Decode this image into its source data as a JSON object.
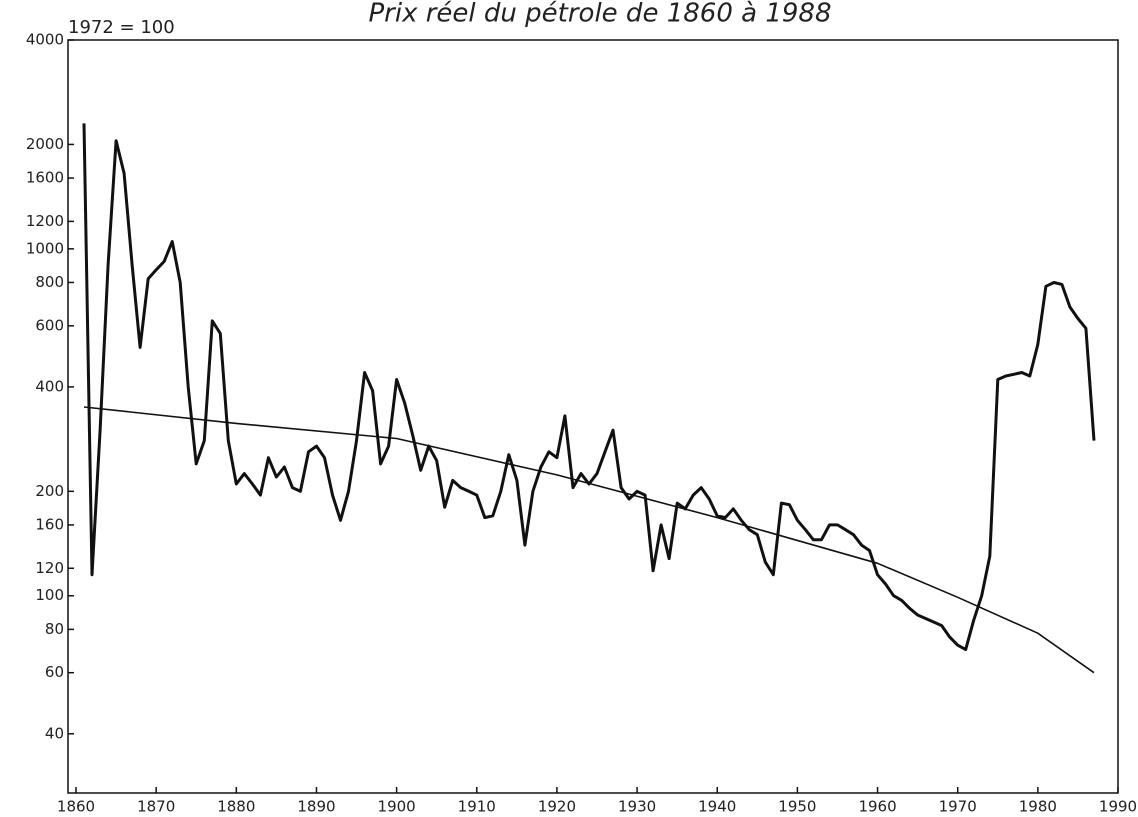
{
  "chart_data": {
    "type": "line",
    "title": "Prix réel du pétrole de 1860 à 1988",
    "y_label": "1972 = 100",
    "log_y": true,
    "xlim": [
      1859,
      1990
    ],
    "ylim": [
      27,
      4000
    ],
    "xticks": [
      1860,
      1870,
      1880,
      1890,
      1900,
      1910,
      1920,
      1930,
      1940,
      1950,
      1960,
      1970,
      1980,
      1990
    ],
    "yticks": [
      40,
      60,
      80,
      100,
      120,
      160,
      200,
      400,
      600,
      800,
      1000,
      1200,
      1600,
      2000,
      4000
    ],
    "series": [
      {
        "color": "#111111",
        "x": [
          1861,
          1862,
          1863,
          1864,
          1865,
          1866,
          1867,
          1868,
          1869,
          1870,
          1871,
          1872,
          1873,
          1874,
          1875,
          1876,
          1877,
          1878,
          1879,
          1880,
          1881,
          1882,
          1883,
          1884,
          1885,
          1886,
          1887,
          1888,
          1889,
          1890,
          1891,
          1892,
          1893,
          1894,
          1895,
          1896,
          1897,
          1898,
          1899,
          1900,
          1901,
          1902,
          1903,
          1904,
          1905,
          1906,
          1907,
          1908,
          1909,
          1910,
          1911,
          1912,
          1913,
          1914,
          1915,
          1916,
          1917,
          1918,
          1919,
          1920,
          1921,
          1922,
          1923,
          1924,
          1925,
          1926,
          1927,
          1928,
          1929,
          1930,
          1931,
          1932,
          1933,
          1934,
          1935,
          1936,
          1937,
          1938,
          1939,
          1940,
          1941,
          1942,
          1943,
          1944,
          1945,
          1946,
          1947,
          1948,
          1949,
          1950,
          1951,
          1952,
          1953,
          1954,
          1955,
          1956,
          1957,
          1958,
          1959,
          1960,
          1961,
          1962,
          1963,
          1964,
          1965,
          1966,
          1967,
          1968,
          1969,
          1970,
          1971,
          1972,
          1973,
          1974,
          1975,
          1976,
          1977,
          1978,
          1979,
          1980,
          1981,
          1982,
          1983,
          1984,
          1985,
          1986,
          1987
        ],
        "values": [
          2300,
          115,
          300,
          900,
          2050,
          1650,
          900,
          520,
          820,
          870,
          920,
          1050,
          800,
          400,
          240,
          280,
          620,
          570,
          280,
          210,
          225,
          210,
          195,
          250,
          220,
          235,
          205,
          200,
          260,
          270,
          250,
          195,
          165,
          200,
          280,
          440,
          390,
          240,
          270,
          420,
          360,
          290,
          230,
          270,
          245,
          180,
          215,
          205,
          200,
          195,
          168,
          170,
          200,
          255,
          215,
          140,
          200,
          235,
          260,
          250,
          330,
          205,
          225,
          210,
          225,
          260,
          300,
          205,
          190,
          200,
          195,
          118,
          160,
          128,
          185,
          178,
          195,
          205,
          190,
          170,
          168,
          178,
          165,
          155,
          150,
          125,
          115,
          185,
          183,
          165,
          155,
          145,
          145,
          160,
          160,
          155,
          150,
          140,
          135,
          115,
          108,
          100,
          97,
          92,
          88,
          86,
          84,
          82,
          76,
          72,
          70,
          85,
          100,
          130,
          420,
          430,
          435,
          440,
          430,
          530,
          780,
          800,
          790,
          680,
          630,
          590,
          280
        ]
      },
      {
        "color": "#111111",
        "x": [
          1861,
          1880,
          1900,
          1920,
          1940,
          1960,
          1970,
          1980,
          1987
        ],
        "values": [
          350,
          314,
          284,
          223,
          168,
          124,
          99,
          78,
          60
        ]
      }
    ]
  }
}
